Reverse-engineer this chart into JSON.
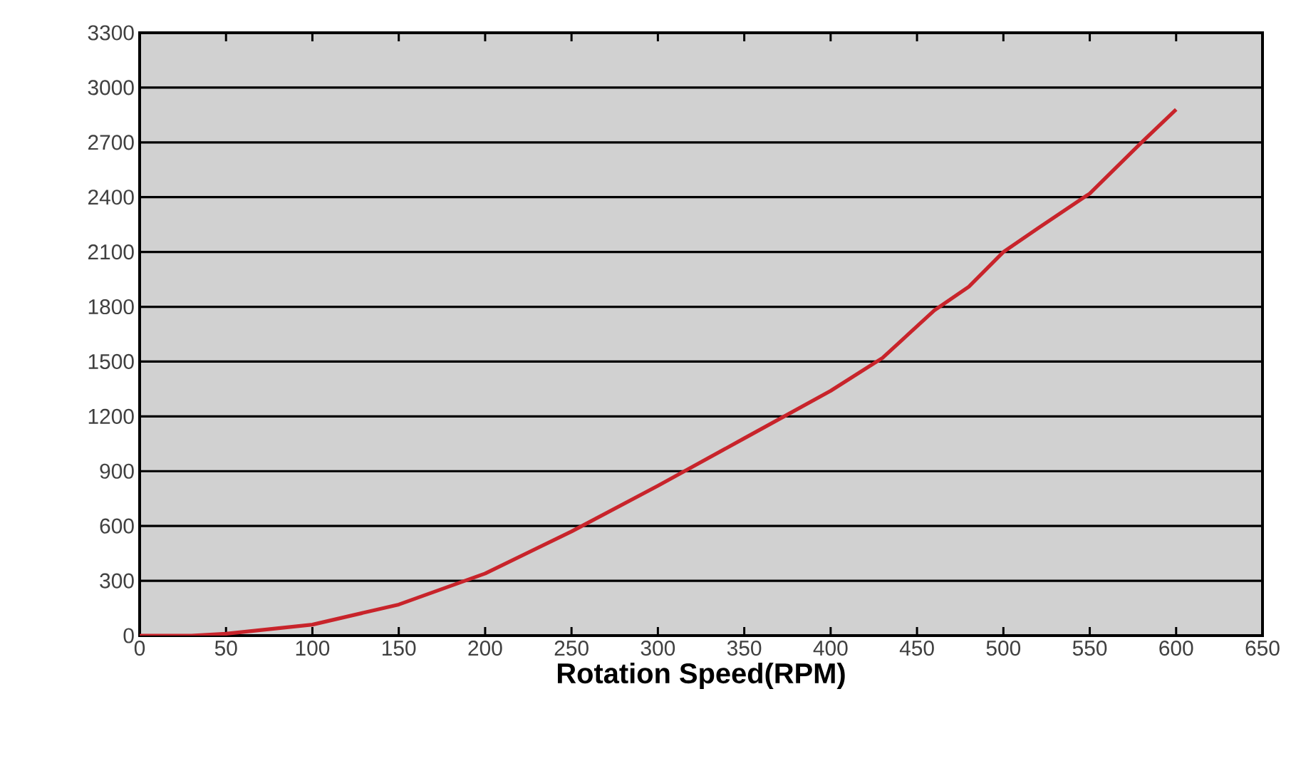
{
  "chart_data": {
    "type": "line",
    "xlabel": "Rotation Speed(RPM)",
    "series": [
      {
        "color": "#c8242b",
        "x": [
          0,
          30,
          50,
          100,
          150,
          200,
          250,
          300,
          350,
          400,
          430,
          460,
          480,
          500,
          520,
          550,
          580,
          600
        ],
        "values": [
          0,
          0,
          10,
          60,
          170,
          340,
          570,
          820,
          1080,
          1340,
          1520,
          1780,
          1910,
          2100,
          2230,
          2420,
          2700,
          2880
        ]
      }
    ],
    "xlim": [
      0,
      650
    ],
    "xticks": [
      0,
      50,
      100,
      150,
      200,
      250,
      300,
      350,
      400,
      450,
      500,
      550,
      600,
      650
    ],
    "ylim": [
      0,
      3300
    ],
    "yticks": [
      0,
      300,
      600,
      900,
      1200,
      1500,
      1800,
      2100,
      2400,
      2700,
      3000,
      3300
    ],
    "grid": "y",
    "line_style": "solid",
    "marker": "none"
  }
}
